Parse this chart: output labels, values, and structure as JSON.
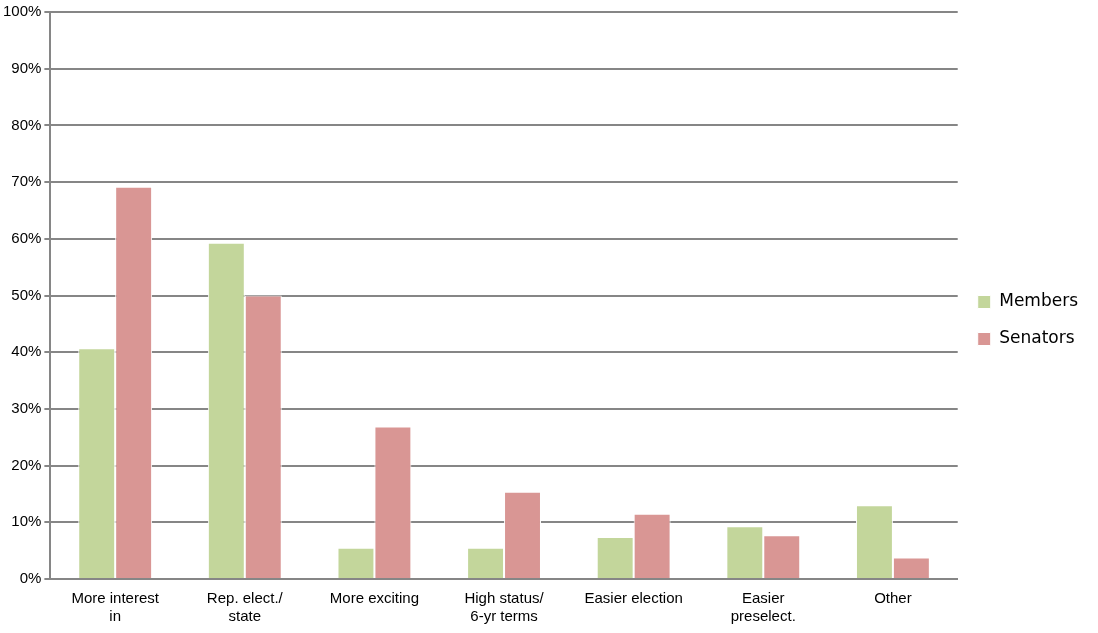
{
  "chart_data": {
    "type": "bar",
    "categories": [
      "More interest in",
      "Rep. elect./ state",
      "More exciting",
      "High status/ 6-yr terms",
      "Easier election",
      "Easier preselect.",
      "Other"
    ],
    "series": [
      {
        "name": "Members",
        "color": "#c3d69b",
        "values": [
          40.7,
          59.3,
          5.5,
          5.5,
          7.4,
          9.3,
          13.0
        ]
      },
      {
        "name": "Senators",
        "color": "#d99694",
        "values": [
          69.2,
          50.0,
          26.9,
          15.4,
          11.5,
          7.7,
          3.8
        ]
      }
    ],
    "ylim": [
      0,
      100
    ],
    "yticks": [
      {
        "value": 0,
        "label": "0%"
      },
      {
        "value": 10,
        "label": "10%"
      },
      {
        "value": 20,
        "label": "20%"
      },
      {
        "value": 30,
        "label": "30%"
      },
      {
        "value": 40,
        "label": "40%"
      },
      {
        "value": 50,
        "label": "50%"
      },
      {
        "value": 60,
        "label": "60%"
      },
      {
        "value": 70,
        "label": "70%"
      },
      {
        "value": 80,
        "label": "80%"
      },
      {
        "value": 90,
        "label": "90%"
      },
      {
        "value": 100,
        "label": "100%"
      }
    ],
    "grid": "y",
    "legend": "right"
  }
}
